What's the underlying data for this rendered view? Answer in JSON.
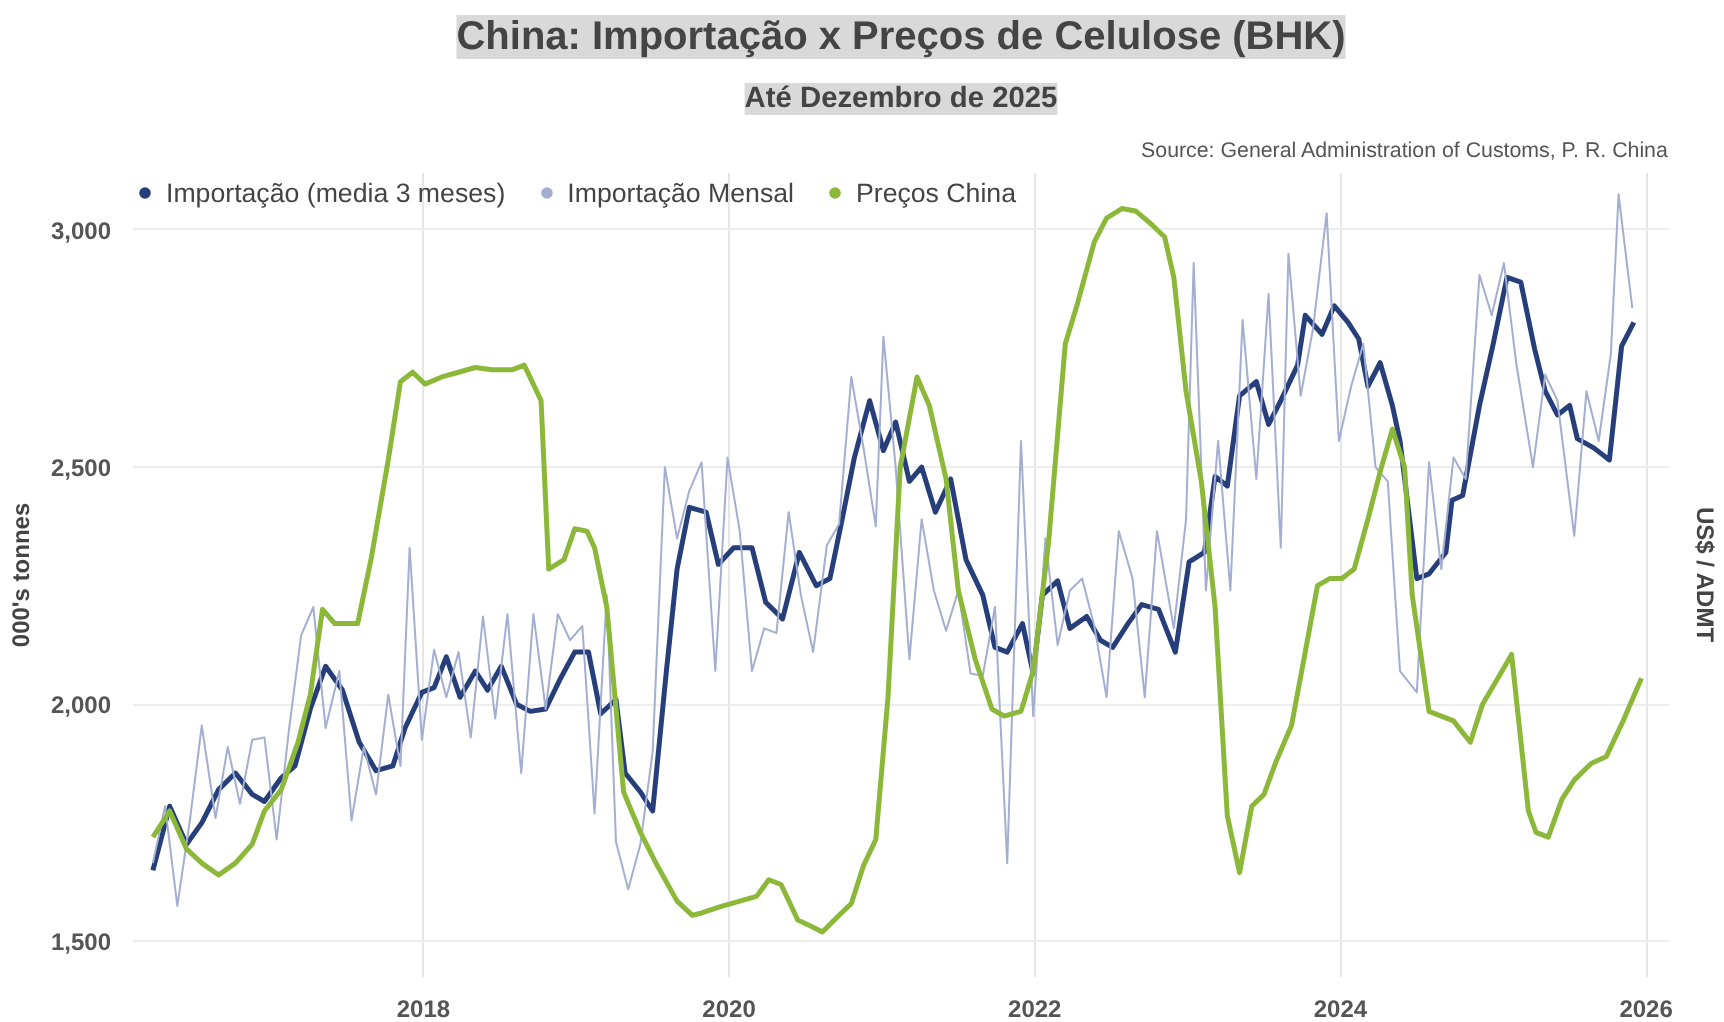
{
  "chart_data": {
    "type": "line",
    "title": "China: Importação x Preços de Celulose (BHK)",
    "subtitle": "Até Dezembro de 2025",
    "ylabel": "000's tonnes",
    "y2label": "US$ / ADMT",
    "annotations": [
      "Source: General Administration of Customs, P. R. China"
    ],
    "xlim": [
      2016.1,
      2026.15
    ],
    "ylim": [
      1425,
      3120
    ],
    "xticks": [
      2018,
      2020,
      2022,
      2024,
      2026
    ],
    "yticks": [
      {
        "value": 1500,
        "label": "1,500"
      },
      {
        "value": 2000,
        "label": "2,000"
      },
      {
        "value": 2500,
        "label": "2,500"
      },
      {
        "value": 3000,
        "label": "3,000"
      }
    ],
    "grid": true,
    "legend": "top left",
    "marker": "none",
    "line_style": "solid",
    "series": [
      {
        "name": "Importação (media 3 meses)",
        "color": "#263f7a",
        "x": [
          2016.23,
          2016.34,
          2016.45,
          2016.55,
          2016.66,
          2016.77,
          2016.88,
          2016.96,
          2017.07,
          2017.16,
          2017.26,
          2017.36,
          2017.47,
          2017.58,
          2017.69,
          2017.8,
          2017.88,
          2017.99,
          2018.07,
          2018.15,
          2018.24,
          2018.34,
          2018.42,
          2018.51,
          2018.61,
          2018.7,
          2018.8,
          2018.89,
          2018.99,
          2019.08,
          2019.16,
          2019.26,
          2019.32,
          2019.42,
          2019.5,
          2019.59,
          2019.66,
          2019.74,
          2019.85,
          2019.93,
          2020.03,
          2020.15,
          2020.24,
          2020.35,
          2020.46,
          2020.57,
          2020.66,
          2020.74,
          2020.82,
          2020.92,
          2021.01,
          2021.09,
          2021.18,
          2021.26,
          2021.35,
          2021.45,
          2021.55,
          2021.66,
          2021.74,
          2021.82,
          2021.92,
          2021.99,
          2022.05,
          2022.15,
          2022.23,
          2022.34,
          2022.43,
          2022.51,
          2022.61,
          2022.7,
          2022.81,
          2022.92,
          2023.01,
          2023.11,
          2023.18,
          2023.26,
          2023.34,
          2023.45,
          2023.53,
          2023.61,
          2023.72,
          2023.77,
          2023.88,
          2023.96,
          2024.05,
          2024.12,
          2024.18,
          2024.26,
          2024.34,
          2024.39,
          2024.5,
          2024.58,
          2024.69,
          2024.73,
          2024.8,
          2024.91,
          2025.0,
          2025.09,
          2025.18,
          2025.27,
          2025.34,
          2025.42,
          2025.5,
          2025.55,
          2025.66,
          2025.76,
          2025.84,
          2025.92
        ],
        "values": [
          1650,
          1785,
          1705,
          1750,
          1820,
          1855,
          1810,
          1795,
          1845,
          1870,
          1990,
          2080,
          2030,
          1920,
          1860,
          1870,
          1950,
          2025,
          2035,
          2100,
          2015,
          2070,
          2030,
          2080,
          2000,
          1985,
          1990,
          2050,
          2110,
          2110,
          1980,
          2010,
          1855,
          1815,
          1775,
          2070,
          2285,
          2415,
          2405,
          2295,
          2330,
          2330,
          2215,
          2180,
          2320,
          2250,
          2265,
          2390,
          2520,
          2640,
          2535,
          2595,
          2470,
          2500,
          2405,
          2475,
          2305,
          2230,
          2120,
          2110,
          2170,
          2065,
          2230,
          2260,
          2160,
          2185,
          2135,
          2120,
          2170,
          2210,
          2200,
          2110,
          2300,
          2320,
          2480,
          2460,
          2650,
          2680,
          2590,
          2640,
          2715,
          2820,
          2780,
          2840,
          2805,
          2770,
          2670,
          2720,
          2630,
          2555,
          2265,
          2275,
          2320,
          2430,
          2440,
          2630,
          2760,
          2900,
          2890,
          2750,
          2660,
          2610,
          2630,
          2560,
          2540,
          2515,
          2755,
          2805
        ]
      },
      {
        "name": "Importação Mensal",
        "color": "#a3aed0",
        "x": [
          2016.23,
          2016.31,
          2016.39,
          2016.47,
          2016.55,
          2016.64,
          2016.72,
          2016.8,
          2016.88,
          2016.96,
          2017.04,
          2017.12,
          2017.2,
          2017.28,
          2017.36,
          2017.45,
          2017.53,
          2017.61,
          2017.69,
          2017.77,
          2017.85,
          2017.91,
          2017.99,
          2018.07,
          2018.15,
          2018.23,
          2018.31,
          2018.39,
          2018.47,
          2018.55,
          2018.64,
          2018.72,
          2018.8,
          2018.88,
          2018.96,
          2019.04,
          2019.12,
          2019.2,
          2019.26,
          2019.34,
          2019.42,
          2019.5,
          2019.58,
          2019.66,
          2019.74,
          2019.82,
          2019.91,
          2019.99,
          2020.07,
          2020.15,
          2020.23,
          2020.31,
          2020.39,
          2020.47,
          2020.55,
          2020.64,
          2020.72,
          2020.8,
          2020.88,
          2020.96,
          2021.01,
          2021.09,
          2021.18,
          2021.26,
          2021.34,
          2021.42,
          2021.5,
          2021.58,
          2021.66,
          2021.74,
          2021.82,
          2021.91,
          2021.99,
          2022.07,
          2022.15,
          2022.23,
          2022.31,
          2022.39,
          2022.47,
          2022.55,
          2022.64,
          2022.72,
          2022.8,
          2022.91,
          2022.99,
          2023.04,
          2023.12,
          2023.2,
          2023.28,
          2023.36,
          2023.45,
          2023.53,
          2023.61,
          2023.66,
          2023.74,
          2023.82,
          2023.91,
          2023.99,
          2024.07,
          2024.15,
          2024.23,
          2024.31,
          2024.39,
          2024.5,
          2024.58,
          2024.66,
          2024.74,
          2024.82,
          2024.91,
          2024.99,
          2025.07,
          2025.15,
          2025.26,
          2025.34,
          2025.42,
          2025.53,
          2025.61,
          2025.69,
          2025.77,
          2025.82,
          2025.91
        ],
        "values": [
          1665,
          1785,
          1575,
          1750,
          1955,
          1760,
          1910,
          1790,
          1925,
          1930,
          1715,
          1945,
          2145,
          2205,
          1950,
          2070,
          1755,
          1910,
          1810,
          2020,
          1870,
          2330,
          1925,
          2115,
          2015,
          2110,
          1930,
          2185,
          1970,
          2190,
          1855,
          2190,
          1990,
          2190,
          2135,
          2165,
          1770,
          2230,
          1710,
          1610,
          1705,
          1900,
          2500,
          2350,
          2450,
          2510,
          2070,
          2520,
          2365,
          2070,
          2160,
          2150,
          2405,
          2230,
          2110,
          2335,
          2380,
          2690,
          2540,
          2375,
          2775,
          2500,
          2095,
          2390,
          2240,
          2155,
          2240,
          2065,
          2060,
          2205,
          1665,
          2555,
          1975,
          2350,
          2125,
          2240,
          2265,
          2165,
          2015,
          2365,
          2265,
          2015,
          2365,
          2160,
          2390,
          2930,
          2240,
          2555,
          2240,
          2810,
          2475,
          2865,
          2330,
          2950,
          2650,
          2790,
          3035,
          2555,
          2670,
          2760,
          2500,
          2470,
          2070,
          2025,
          2510,
          2285,
          2520,
          2475,
          2905,
          2820,
          2930,
          2720,
          2500,
          2695,
          2640,
          2355,
          2660,
          2555,
          2740,
          3075,
          2835
        ]
      },
      {
        "name": "Preços China",
        "color": "#8cb83a",
        "x": [
          2016.23,
          2016.34,
          2016.45,
          2016.55,
          2016.66,
          2016.77,
          2016.88,
          2016.96,
          2017.07,
          2017.18,
          2017.26,
          2017.34,
          2017.42,
          2017.57,
          2017.66,
          2017.77,
          2017.85,
          2017.93,
          2018.01,
          2018.12,
          2018.23,
          2018.34,
          2018.45,
          2018.58,
          2018.66,
          2018.77,
          2018.82,
          2018.92,
          2018.99,
          2019.07,
          2019.12,
          2019.2,
          2019.31,
          2019.42,
          2019.53,
          2019.66,
          2019.76,
          2019.82,
          2019.96,
          2020.07,
          2020.18,
          2020.26,
          2020.34,
          2020.45,
          2020.55,
          2020.61,
          2020.72,
          2020.8,
          2020.88,
          2020.96,
          2021.04,
          2021.12,
          2021.23,
          2021.31,
          2021.42,
          2021.5,
          2021.61,
          2021.72,
          2021.8,
          2021.91,
          2021.99,
          2022.09,
          2022.2,
          2022.28,
          2022.39,
          2022.47,
          2022.57,
          2022.66,
          2022.77,
          2022.85,
          2022.91,
          2022.99,
          2023.09,
          2023.18,
          2023.26,
          2023.34,
          2023.42,
          2023.5,
          2023.58,
          2023.68,
          2023.77,
          2023.85,
          2023.93,
          2024.01,
          2024.09,
          2024.18,
          2024.26,
          2024.34,
          2024.42,
          2024.47,
          2024.58,
          2024.66,
          2024.74,
          2024.85,
          2024.93,
          2025.03,
          2025.12,
          2025.23,
          2025.28,
          2025.36,
          2025.45,
          2025.53,
          2025.64,
          2025.74,
          2025.85,
          2025.97
        ],
        "values": [
          1720,
          1775,
          1695,
          1665,
          1640,
          1665,
          1705,
          1775,
          1820,
          1920,
          2020,
          2200,
          2170,
          2170,
          2310,
          2515,
          2680,
          2700,
          2675,
          2690,
          2700,
          2710,
          2705,
          2705,
          2715,
          2640,
          2285,
          2305,
          2370,
          2365,
          2330,
          2205,
          1815,
          1730,
          1660,
          1585,
          1555,
          1560,
          1575,
          1585,
          1595,
          1630,
          1620,
          1545,
          1530,
          1520,
          1555,
          1580,
          1660,
          1715,
          2015,
          2500,
          2690,
          2630,
          2475,
          2240,
          2095,
          1990,
          1975,
          1985,
          2070,
          2340,
          2760,
          2845,
          2975,
          3025,
          3045,
          3040,
          3010,
          2985,
          2900,
          2660,
          2470,
          2205,
          1765,
          1645,
          1785,
          1810,
          1880,
          1955,
          2110,
          2250,
          2265,
          2265,
          2285,
          2390,
          2490,
          2580,
          2500,
          2230,
          1985,
          1975,
          1965,
          1920,
          2000,
          2055,
          2105,
          1775,
          1730,
          1720,
          1800,
          1840,
          1875,
          1890,
          1965,
          2055
        ]
      }
    ]
  }
}
